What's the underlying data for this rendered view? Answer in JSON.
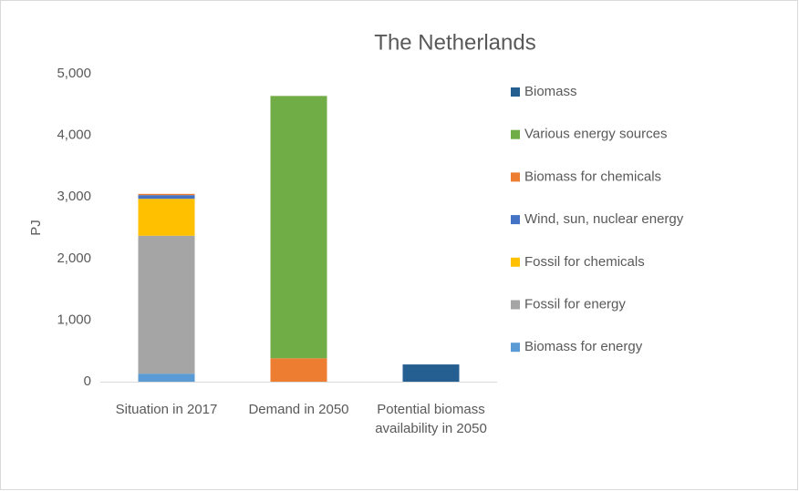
{
  "chart_data": {
    "type": "stacked-bar",
    "title": "The Netherlands",
    "ylabel": "PJ",
    "categories": [
      "Situation in 2017",
      "Demand in 2050",
      "Potential biomass availability in 2050"
    ],
    "series": [
      {
        "name": "Biomass for energy",
        "color": "#5b9bd5",
        "values": [
          130,
          null,
          null
        ]
      },
      {
        "name": "Fossil for energy",
        "color": "#a5a5a5",
        "values": [
          2240,
          null,
          null
        ]
      },
      {
        "name": "Fossil for chemicals",
        "color": "#ffc000",
        "values": [
          600,
          null,
          null
        ]
      },
      {
        "name": "Wind, sun, nuclear energy",
        "color": "#4472c4",
        "values": [
          60,
          null,
          null
        ]
      },
      {
        "name": "Biomass for chemicals",
        "color": "#ed7d31",
        "values": [
          20,
          380,
          null
        ]
      },
      {
        "name": "Various energy sources",
        "color": "#70ad47",
        "values": [
          null,
          4260,
          null
        ]
      },
      {
        "name": "Biomass",
        "color": "#255e91",
        "values": [
          null,
          null,
          280
        ]
      }
    ],
    "ylim": [
      0,
      5000
    ],
    "yticks": [
      0,
      {
        "value": 1000,
        "label": "1,000"
      },
      {
        "value": 2000,
        "label": "2,000"
      },
      {
        "value": 3000,
        "label": "3,000"
      },
      {
        "value": 4000,
        "label": "4,000"
      },
      {
        "value": 5000,
        "label": "5,000"
      }
    ],
    "grid": false,
    "legend": "right"
  }
}
